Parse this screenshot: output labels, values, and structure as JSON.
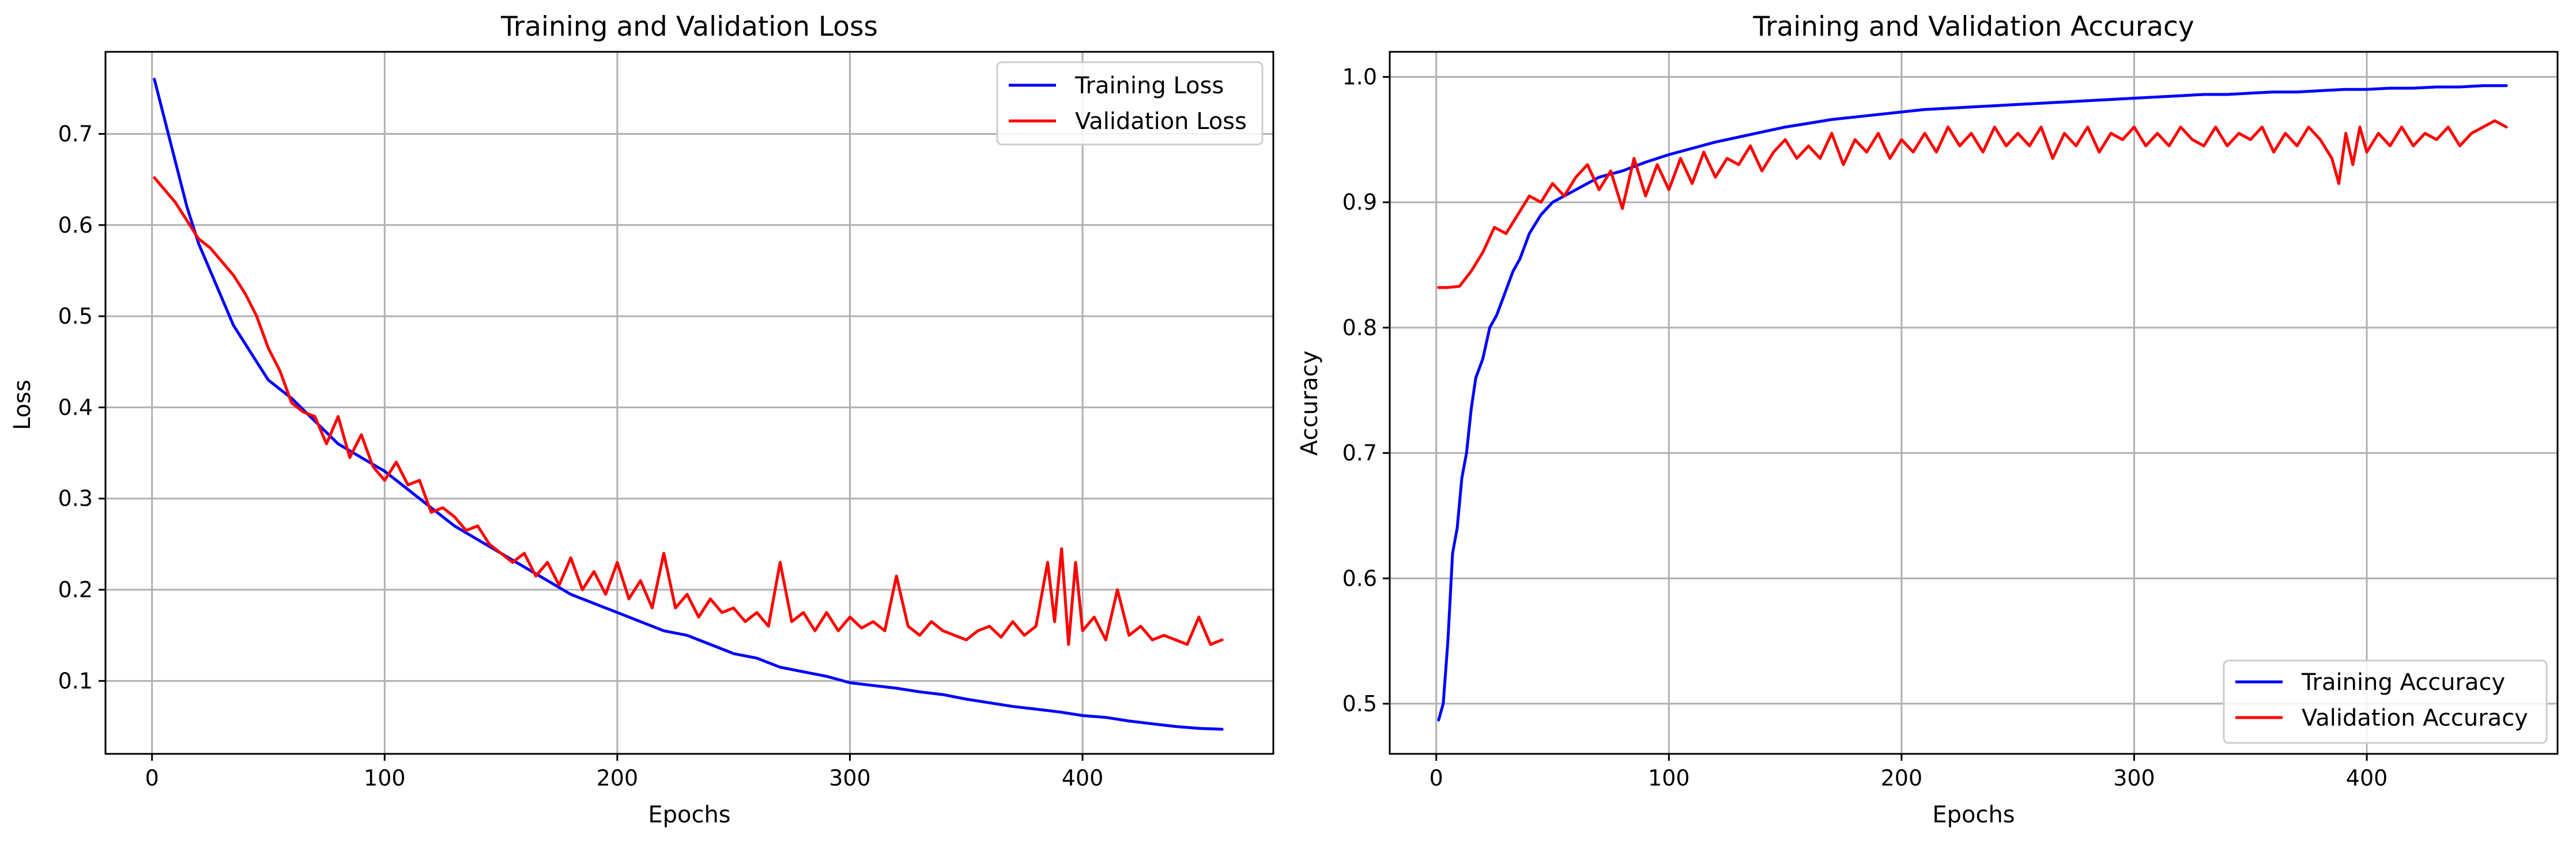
{
  "colors": {
    "training": "#0000ff",
    "validation": "#ff0000",
    "grid": "#b0b0b0"
  },
  "chart_data": [
    {
      "type": "line",
      "title": "Training and Validation Loss",
      "xlabel": "Epochs",
      "ylabel": "Loss",
      "xlim": [
        -20,
        482
      ],
      "ylim": [
        0.02,
        0.79
      ],
      "xticks": [
        0,
        100,
        200,
        300,
        400
      ],
      "yticks": [
        0.1,
        0.2,
        0.3,
        0.4,
        0.5,
        0.6,
        0.7
      ],
      "grid": true,
      "legend_position": "upper-right",
      "series": [
        {
          "name": "Training Loss",
          "color": "#0000ff",
          "x": [
            1,
            5,
            10,
            15,
            20,
            25,
            30,
            35,
            40,
            45,
            50,
            55,
            60,
            70,
            80,
            90,
            100,
            110,
            120,
            130,
            140,
            150,
            160,
            170,
            180,
            190,
            200,
            210,
            220,
            230,
            240,
            250,
            260,
            270,
            280,
            290,
            300,
            310,
            320,
            330,
            340,
            350,
            360,
            370,
            380,
            390,
            400,
            410,
            420,
            430,
            440,
            450,
            460
          ],
          "y": [
            0.76,
            0.72,
            0.67,
            0.62,
            0.58,
            0.55,
            0.52,
            0.49,
            0.47,
            0.45,
            0.43,
            0.42,
            0.41,
            0.385,
            0.36,
            0.345,
            0.33,
            0.31,
            0.29,
            0.27,
            0.255,
            0.24,
            0.225,
            0.21,
            0.195,
            0.185,
            0.175,
            0.165,
            0.155,
            0.15,
            0.14,
            0.13,
            0.125,
            0.115,
            0.11,
            0.105,
            0.098,
            0.095,
            0.092,
            0.088,
            0.085,
            0.08,
            0.076,
            0.072,
            0.069,
            0.066,
            0.062,
            0.06,
            0.056,
            0.053,
            0.05,
            0.048,
            0.047
          ]
        },
        {
          "name": "Validation Loss",
          "color": "#ff0000",
          "x": [
            1,
            5,
            10,
            15,
            20,
            25,
            30,
            35,
            40,
            45,
            50,
            55,
            60,
            65,
            70,
            75,
            80,
            85,
            90,
            95,
            100,
            105,
            110,
            115,
            120,
            125,
            130,
            135,
            140,
            145,
            150,
            155,
            160,
            165,
            170,
            175,
            180,
            185,
            190,
            195,
            200,
            205,
            210,
            215,
            220,
            225,
            230,
            235,
            240,
            245,
            250,
            255,
            260,
            265,
            270,
            275,
            280,
            285,
            290,
            295,
            300,
            305,
            310,
            315,
            320,
            325,
            330,
            335,
            340,
            345,
            350,
            355,
            360,
            365,
            370,
            375,
            380,
            385,
            388,
            391,
            394,
            397,
            400,
            405,
            410,
            415,
            420,
            425,
            430,
            435,
            440,
            445,
            450,
            455,
            460
          ],
          "y": [
            0.652,
            0.64,
            0.625,
            0.605,
            0.585,
            0.575,
            0.56,
            0.545,
            0.525,
            0.5,
            0.465,
            0.44,
            0.405,
            0.395,
            0.39,
            0.36,
            0.39,
            0.345,
            0.37,
            0.335,
            0.32,
            0.34,
            0.315,
            0.32,
            0.285,
            0.29,
            0.28,
            0.265,
            0.27,
            0.25,
            0.24,
            0.23,
            0.24,
            0.215,
            0.23,
            0.205,
            0.235,
            0.2,
            0.22,
            0.195,
            0.23,
            0.19,
            0.21,
            0.18,
            0.24,
            0.18,
            0.195,
            0.17,
            0.19,
            0.175,
            0.18,
            0.165,
            0.175,
            0.16,
            0.23,
            0.165,
            0.175,
            0.155,
            0.175,
            0.155,
            0.17,
            0.158,
            0.165,
            0.155,
            0.215,
            0.16,
            0.15,
            0.165,
            0.155,
            0.15,
            0.145,
            0.155,
            0.16,
            0.148,
            0.165,
            0.15,
            0.16,
            0.23,
            0.165,
            0.245,
            0.14,
            0.23,
            0.155,
            0.17,
            0.145,
            0.2,
            0.15,
            0.16,
            0.145,
            0.15,
            0.145,
            0.14,
            0.17,
            0.14,
            0.145
          ]
        }
      ]
    },
    {
      "type": "line",
      "title": "Training and Validation Accuracy",
      "xlabel": "Epochs",
      "ylabel": "Accuracy",
      "xlim": [
        -20,
        482
      ],
      "ylim": [
        0.46,
        1.02
      ],
      "xticks": [
        0,
        100,
        200,
        300,
        400
      ],
      "yticks": [
        0.5,
        0.6,
        0.7,
        0.8,
        0.9,
        1.0
      ],
      "grid": true,
      "legend_position": "lower-right",
      "series": [
        {
          "name": "Training Accuracy",
          "color": "#0000ff",
          "x": [
            1,
            3,
            5,
            7,
            9,
            11,
            13,
            15,
            17,
            20,
            23,
            26,
            30,
            33,
            36,
            40,
            45,
            50,
            55,
            60,
            65,
            70,
            80,
            90,
            100,
            110,
            120,
            130,
            140,
            150,
            160,
            170,
            180,
            190,
            200,
            210,
            220,
            230,
            240,
            250,
            260,
            270,
            280,
            290,
            300,
            310,
            320,
            330,
            340,
            350,
            360,
            370,
            380,
            390,
            400,
            410,
            420,
            430,
            440,
            450,
            460
          ],
          "y": [
            0.487,
            0.5,
            0.55,
            0.62,
            0.64,
            0.68,
            0.7,
            0.735,
            0.76,
            0.775,
            0.8,
            0.81,
            0.83,
            0.845,
            0.855,
            0.875,
            0.89,
            0.9,
            0.905,
            0.91,
            0.915,
            0.92,
            0.925,
            0.932,
            0.938,
            0.943,
            0.948,
            0.952,
            0.956,
            0.96,
            0.963,
            0.966,
            0.968,
            0.97,
            0.972,
            0.974,
            0.975,
            0.976,
            0.977,
            0.978,
            0.979,
            0.98,
            0.981,
            0.982,
            0.983,
            0.984,
            0.985,
            0.986,
            0.986,
            0.987,
            0.988,
            0.988,
            0.989,
            0.99,
            0.99,
            0.991,
            0.991,
            0.992,
            0.992,
            0.993,
            0.993
          ]
        },
        {
          "name": "Validation Accuracy",
          "color": "#ff0000",
          "x": [
            1,
            5,
            10,
            15,
            20,
            25,
            30,
            35,
            40,
            45,
            50,
            55,
            60,
            65,
            70,
            75,
            80,
            85,
            90,
            95,
            100,
            105,
            110,
            115,
            120,
            125,
            130,
            135,
            140,
            145,
            150,
            155,
            160,
            165,
            170,
            175,
            180,
            185,
            190,
            195,
            200,
            205,
            210,
            215,
            220,
            225,
            230,
            235,
            240,
            245,
            250,
            255,
            260,
            265,
            270,
            275,
            280,
            285,
            290,
            295,
            300,
            305,
            310,
            315,
            320,
            325,
            330,
            335,
            340,
            345,
            350,
            355,
            360,
            365,
            370,
            375,
            380,
            385,
            388,
            391,
            394,
            397,
            400,
            405,
            410,
            415,
            420,
            425,
            430,
            435,
            440,
            445,
            450,
            455,
            460
          ],
          "y": [
            0.832,
            0.832,
            0.833,
            0.845,
            0.86,
            0.88,
            0.875,
            0.89,
            0.905,
            0.9,
            0.915,
            0.905,
            0.92,
            0.93,
            0.91,
            0.925,
            0.895,
            0.935,
            0.905,
            0.93,
            0.91,
            0.935,
            0.915,
            0.94,
            0.92,
            0.935,
            0.93,
            0.945,
            0.925,
            0.94,
            0.95,
            0.935,
            0.945,
            0.935,
            0.955,
            0.93,
            0.95,
            0.94,
            0.955,
            0.935,
            0.95,
            0.94,
            0.955,
            0.94,
            0.96,
            0.945,
            0.955,
            0.94,
            0.96,
            0.945,
            0.955,
            0.945,
            0.96,
            0.935,
            0.955,
            0.945,
            0.96,
            0.94,
            0.955,
            0.95,
            0.96,
            0.945,
            0.955,
            0.945,
            0.96,
            0.95,
            0.945,
            0.96,
            0.945,
            0.955,
            0.95,
            0.96,
            0.94,
            0.955,
            0.945,
            0.96,
            0.95,
            0.935,
            0.915,
            0.955,
            0.93,
            0.96,
            0.94,
            0.955,
            0.945,
            0.96,
            0.945,
            0.955,
            0.95,
            0.96,
            0.945,
            0.955,
            0.96,
            0.965,
            0.96
          ]
        }
      ]
    }
  ]
}
